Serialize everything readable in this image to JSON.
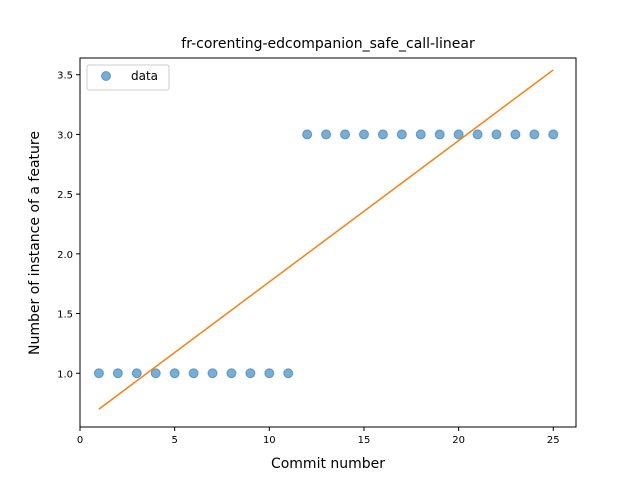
{
  "chart_data": {
    "type": "scatter",
    "title": "fr-corenting-edcompanion_safe_call-linear",
    "xlabel": "Commit number",
    "ylabel": "Number of instance of a feature",
    "xlim": [
      0,
      26.2
    ],
    "ylim": [
      0.55,
      3.64
    ],
    "xticks": [
      0,
      5,
      10,
      15,
      20,
      25
    ],
    "yticks": [
      1.0,
      1.5,
      2.0,
      2.5,
      3.0,
      3.5
    ],
    "xtick_labels": [
      "0",
      "5",
      "10",
      "15",
      "20",
      "25"
    ],
    "ytick_labels": [
      "1.0",
      "1.5",
      "2.0",
      "2.5",
      "3.0",
      "3.5"
    ],
    "grid": false,
    "legend_position": "top-left",
    "series": [
      {
        "name": "data",
        "kind": "scatter",
        "color": "#1f77b4",
        "x": [
          1,
          2,
          3,
          4,
          5,
          6,
          7,
          8,
          9,
          10,
          11,
          12,
          13,
          14,
          15,
          16,
          17,
          18,
          19,
          20,
          21,
          22,
          23,
          24,
          25
        ],
        "y": [
          1,
          1,
          1,
          1,
          1,
          1,
          1,
          1,
          1,
          1,
          1,
          3,
          3,
          3,
          3,
          3,
          3,
          3,
          3,
          3,
          3,
          3,
          3,
          3,
          3
        ]
      },
      {
        "kind": "line",
        "color": "#ff7f0e",
        "x": [
          1,
          25
        ],
        "y": [
          0.7,
          3.54
        ]
      }
    ]
  }
}
